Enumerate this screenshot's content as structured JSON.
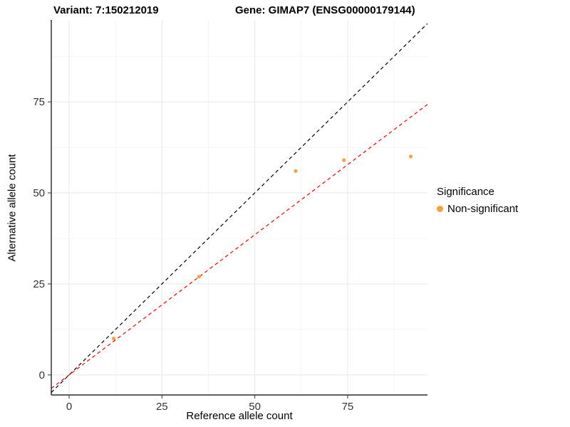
{
  "chart_data": {
    "type": "scatter",
    "title_left": "Variant: 7:150212019",
    "title_right": "Gene: GIMAP7 (ENSG00000179144)",
    "xlabel": "Reference allele count",
    "ylabel": "Alternative allele count",
    "xlim": [
      -4.8,
      96.5
    ],
    "ylim": [
      -5.5,
      97.5
    ],
    "xticks": [
      0,
      25,
      50,
      75
    ],
    "yticks": [
      0,
      25,
      50,
      75
    ],
    "xticks_minor": [
      12.5,
      37.5,
      62.5,
      87.5
    ],
    "yticks_minor": [
      12.5,
      37.5,
      62.5,
      87.5
    ],
    "grid": true,
    "points": [
      {
        "x": 12,
        "y": 10
      },
      {
        "x": 35,
        "y": 27
      },
      {
        "x": 61,
        "y": 56
      },
      {
        "x": 74,
        "y": 59
      },
      {
        "x": 92,
        "y": 60
      }
    ],
    "point_color": "#F9A03F",
    "lines": [
      {
        "name": "identity-line",
        "slope": 1,
        "intercept": 0,
        "color": "#000000",
        "dash": "5,4"
      },
      {
        "name": "fit-line",
        "slope": 0.77,
        "intercept": 0,
        "color": "#FF0000",
        "dash": "5,4"
      }
    ],
    "legend": {
      "title": "Significance",
      "entries": [
        {
          "label": "Non-significant",
          "color": "#F9A03F"
        }
      ]
    },
    "colors": {
      "grid_major": "#E8E8E8",
      "grid_minor": "#F4F4F4",
      "axis": "#000000",
      "tick_label": "#333333"
    }
  }
}
